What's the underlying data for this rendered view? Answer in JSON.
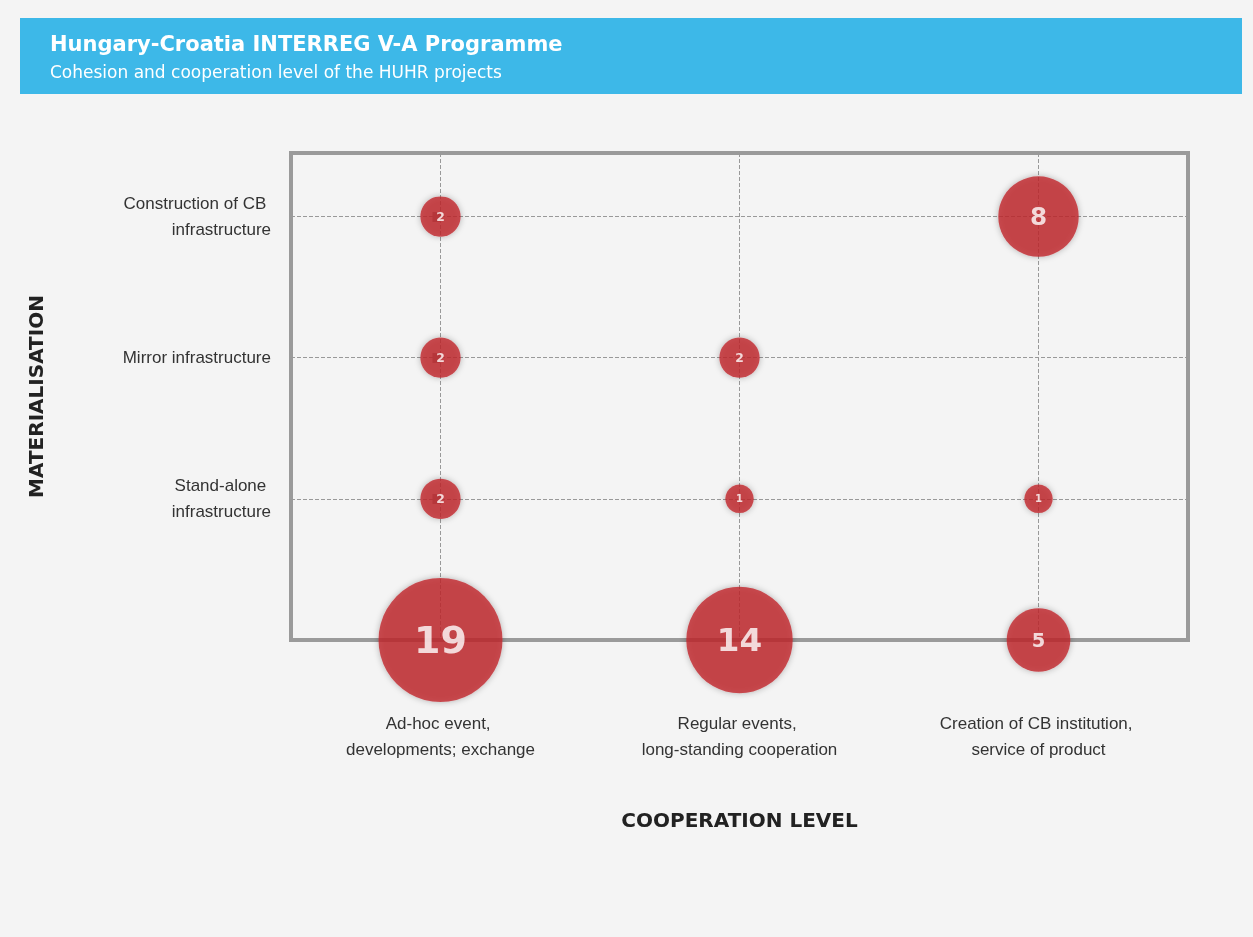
{
  "chart_data": {
    "type": "heatmap",
    "title": "Hungary-Croatia INTERREG V-A Programme",
    "subtitle": "Cohesion and cooperation level of the HUHR projects",
    "xlabel": "COOPERATION LEVEL",
    "ylabel": "MATERIALISATION",
    "categories": [
      "Ad-hoc event, developments; exchange",
      "Regular events, long-standing cooperation",
      "Creation of CB institution, service of product"
    ],
    "y_categories": [
      "Construction of CB infrastructure",
      "Mirror infrastructure",
      "Stand-alone infrastructure",
      null
    ],
    "cells": [
      [
        2,
        null,
        8
      ],
      [
        2,
        2,
        null
      ],
      [
        2,
        1,
        1
      ],
      [
        19,
        14,
        5
      ]
    ],
    "color": "#c0272d",
    "data_labels": true,
    "grid": true
  }
}
